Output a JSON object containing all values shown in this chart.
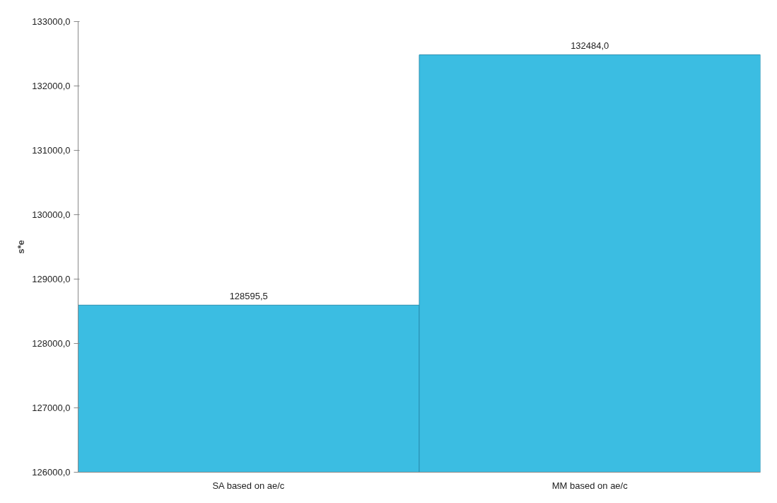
{
  "chart_data": {
    "type": "bar",
    "ylabel": "s*e",
    "categories": [
      "SA based on ae/c",
      "MM based on ae/c"
    ],
    "values": [
      128595.5,
      132484.0
    ],
    "value_labels": [
      "128595,5",
      "132484,0"
    ],
    "color": "#3bbde2",
    "ylim": [
      126000,
      133000
    ],
    "yticks": [
      {
        "value": 126000,
        "label": "126000,0"
      },
      {
        "value": 127000,
        "label": "127000,0"
      },
      {
        "value": 128000,
        "label": "128000,0"
      },
      {
        "value": 129000,
        "label": "129000,0"
      },
      {
        "value": 130000,
        "label": "130000,0"
      },
      {
        "value": 131000,
        "label": "131000,0"
      },
      {
        "value": 132000,
        "label": "132000,0"
      },
      {
        "value": 133000,
        "label": "133000,0"
      }
    ],
    "grid": false
  }
}
